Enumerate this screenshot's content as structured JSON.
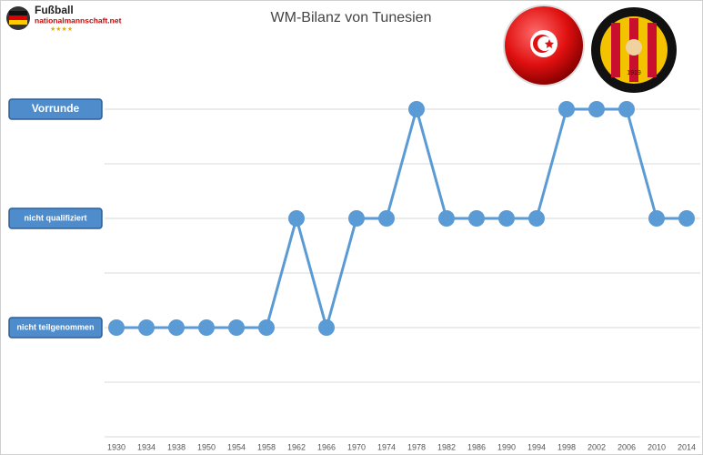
{
  "chart_data": {
    "type": "line",
    "title": "WM-Bilanz von Tunesien",
    "logo": {
      "line1": "Fußball",
      "line2": "nationalmannschaft.net"
    },
    "badge_year": "1919",
    "categories": [
      "1930",
      "1934",
      "1938",
      "1950",
      "1954",
      "1958",
      "1962",
      "1966",
      "1970",
      "1974",
      "1978",
      "1982",
      "1986",
      "1990",
      "1994",
      "1998",
      "2002",
      "2006",
      "2010",
      "2014"
    ],
    "series": [
      {
        "name": "Tunesien",
        "color": "#5b9bd5",
        "values": [
          1,
          1,
          1,
          1,
          1,
          1,
          2,
          1,
          2,
          2,
          3,
          2,
          2,
          2,
          2,
          3,
          3,
          3,
          2,
          2
        ]
      }
    ],
    "ylim": [
      0,
      3
    ],
    "yticks": [
      {
        "value": 1,
        "label": "nicht teilgenommen"
      },
      {
        "value": 2,
        "label": "nicht qualifiziert"
      },
      {
        "value": 3,
        "label": "Vorrunde"
      }
    ],
    "grid_lines": [
      0,
      0.5,
      1,
      1.5,
      2,
      2.5,
      3
    ],
    "grid": true
  }
}
